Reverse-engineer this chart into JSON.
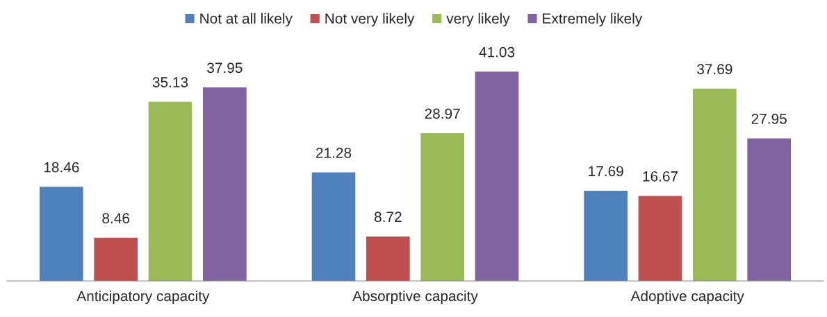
{
  "chart_data": {
    "type": "bar",
    "categories": [
      "Anticipatory capacity",
      "Absorptive capacity",
      "Adoptive capacity"
    ],
    "series": [
      {
        "name": "Not at all likely",
        "color": "#4f81bd",
        "values": [
          18.46,
          21.28,
          17.69
        ]
      },
      {
        "name": "Not very likely",
        "color": "#c0504d",
        "values": [
          8.46,
          8.72,
          16.67
        ]
      },
      {
        "name": "very likely",
        "color": "#9bbb59",
        "values": [
          35.13,
          28.97,
          37.69
        ]
      },
      {
        "name": "Extremely likely",
        "color": "#8064a2",
        "values": [
          37.95,
          41.03,
          27.95
        ]
      }
    ],
    "data_labels": true,
    "legend": "top",
    "grid": false
  }
}
